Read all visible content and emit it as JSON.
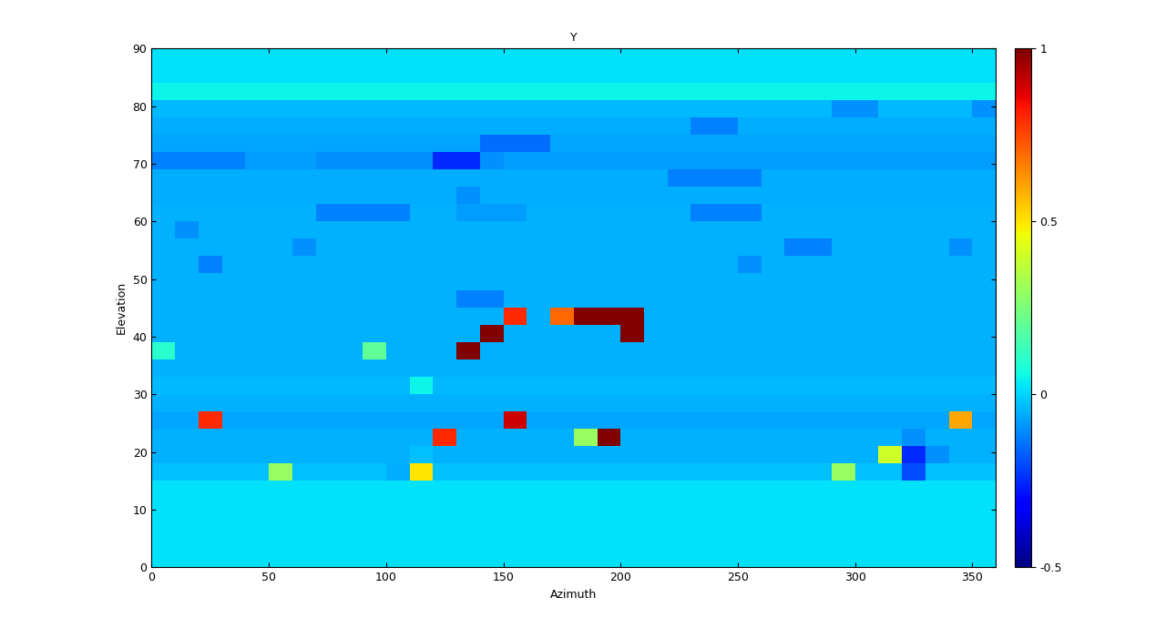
{
  "chart_data": {
    "type": "heatmap",
    "title": "Y",
    "x_label": "Azimuth",
    "y_label": "Elevation",
    "xlim": [
      0,
      360
    ],
    "xticks": [
      0,
      50,
      100,
      150,
      200,
      250,
      300,
      350
    ],
    "ylim": [
      0,
      90
    ],
    "yticks": [
      0,
      10,
      20,
      30,
      40,
      50,
      60,
      70,
      80,
      90
    ],
    "x": [
      0,
      10,
      20,
      30,
      40,
      50,
      60,
      70,
      80,
      90,
      100,
      110,
      120,
      130,
      140,
      150,
      160,
      170,
      180,
      190,
      200,
      210,
      220,
      230,
      240,
      250,
      260,
      270,
      280,
      290,
      300,
      310,
      320,
      330,
      340,
      350,
      360
    ],
    "y": [
      0,
      3,
      6,
      9,
      12,
      15,
      18,
      21,
      24,
      27,
      30,
      33,
      36,
      39,
      42,
      45,
      48,
      51,
      54,
      57,
      60,
      63,
      66,
      69,
      72,
      75,
      78,
      81,
      84,
      87,
      90
    ],
    "z": [
      [
        0.02,
        0.02,
        0.02,
        0.02,
        0.02,
        0.02,
        0.02,
        0.02,
        0.02,
        0.02,
        0.02,
        0.02,
        0.02,
        0.02,
        0.02,
        0.02,
        0.02,
        0.02,
        0.02,
        0.02,
        0.02,
        0.02,
        0.02,
        0.02,
        0.02,
        0.02,
        0.02,
        0.02,
        0.02,
        0.02,
        0.02,
        0.02,
        0.02,
        0.02,
        0.02,
        0.02
      ],
      [
        0.02,
        0.02,
        0.02,
        0.02,
        0.02,
        0.02,
        0.02,
        0.02,
        0.02,
        0.02,
        0.02,
        0.02,
        0.02,
        0.02,
        0.02,
        0.02,
        0.02,
        0.02,
        0.02,
        0.02,
        0.02,
        0.02,
        0.02,
        0.02,
        0.02,
        0.02,
        0.02,
        0.02,
        0.02,
        0.02,
        0.02,
        0.02,
        0.02,
        0.02,
        0.02,
        0.02
      ],
      [
        0.02,
        0.02,
        0.02,
        0.02,
        0.02,
        0.02,
        0.02,
        0.02,
        0.02,
        0.02,
        0.02,
        0.02,
        0.02,
        0.02,
        0.02,
        0.02,
        0.02,
        0.02,
        0.02,
        0.02,
        0.02,
        0.02,
        0.02,
        0.02,
        0.02,
        0.02,
        0.02,
        0.02,
        0.02,
        0.02,
        0.02,
        0.02,
        0.02,
        0.02,
        0.02,
        0.02
      ],
      [
        0.02,
        0.02,
        0.02,
        0.02,
        0.02,
        0.02,
        0.02,
        0.02,
        0.02,
        0.02,
        0.02,
        0.02,
        0.02,
        0.02,
        0.02,
        0.02,
        0.02,
        0.02,
        0.02,
        0.02,
        0.02,
        0.02,
        0.02,
        0.02,
        0.02,
        0.02,
        0.02,
        0.02,
        0.02,
        0.02,
        0.02,
        0.02,
        0.02,
        0.02,
        0.02,
        0.02
      ],
      [
        0.02,
        0.02,
        0.02,
        0.02,
        0.02,
        0.02,
        0.02,
        0.02,
        0.02,
        0.02,
        0.02,
        0.02,
        0.02,
        0.02,
        0.02,
        0.02,
        0.02,
        0.02,
        0.02,
        0.02,
        0.02,
        0.02,
        0.02,
        0.02,
        0.02,
        0.02,
        0.02,
        0.02,
        0.02,
        0.02,
        0.02,
        0.02,
        0.02,
        0.02,
        0.02,
        0.02
      ],
      [
        -0.03,
        -0.03,
        -0.03,
        -0.03,
        -0.03,
        0.3,
        -0.03,
        -0.03,
        -0.03,
        -0.03,
        -0.06,
        0.5,
        -0.03,
        -0.03,
        -0.03,
        -0.03,
        -0.03,
        -0.03,
        -0.03,
        -0.03,
        -0.03,
        -0.03,
        -0.03,
        -0.03,
        -0.03,
        -0.03,
        -0.03,
        -0.03,
        -0.03,
        0.3,
        -0.03,
        -0.03,
        -0.2,
        -0.03,
        -0.03,
        -0.03
      ],
      [
        -0.05,
        -0.05,
        -0.05,
        -0.05,
        -0.05,
        -0.05,
        -0.05,
        -0.05,
        -0.05,
        -0.05,
        -0.05,
        -0.03,
        -0.05,
        -0.05,
        -0.05,
        -0.05,
        -0.05,
        -0.05,
        -0.05,
        -0.05,
        -0.05,
        -0.05,
        -0.05,
        -0.05,
        -0.05,
        -0.05,
        -0.05,
        -0.05,
        -0.05,
        -0.05,
        -0.05,
        0.4,
        -0.25,
        -0.1,
        -0.05,
        -0.05
      ],
      [
        -0.05,
        -0.05,
        -0.05,
        -0.05,
        -0.05,
        -0.05,
        -0.05,
        -0.05,
        -0.05,
        -0.05,
        -0.05,
        -0.05,
        0.8,
        -0.05,
        -0.05,
        -0.05,
        -0.05,
        -0.05,
        0.3,
        1.0,
        -0.05,
        -0.05,
        -0.05,
        -0.05,
        -0.05,
        -0.05,
        -0.05,
        -0.05,
        -0.05,
        -0.05,
        -0.05,
        -0.05,
        -0.1,
        -0.05,
        -0.05,
        -0.05
      ],
      [
        -0.07,
        -0.07,
        0.8,
        -0.07,
        -0.07,
        -0.07,
        -0.07,
        -0.07,
        -0.07,
        -0.07,
        -0.07,
        -0.07,
        -0.07,
        -0.07,
        -0.07,
        0.9,
        -0.07,
        -0.07,
        -0.07,
        -0.07,
        -0.07,
        -0.07,
        -0.07,
        -0.07,
        -0.07,
        -0.07,
        -0.07,
        -0.07,
        -0.07,
        -0.07,
        -0.07,
        -0.07,
        -0.07,
        -0.07,
        0.6,
        -0.07
      ],
      [
        -0.05,
        -0.05,
        -0.05,
        -0.05,
        -0.05,
        -0.05,
        -0.05,
        -0.05,
        -0.05,
        -0.05,
        -0.05,
        -0.05,
        -0.05,
        -0.05,
        -0.05,
        -0.05,
        -0.05,
        -0.05,
        -0.05,
        -0.05,
        -0.05,
        -0.05,
        -0.05,
        -0.05,
        -0.05,
        -0.05,
        -0.05,
        -0.05,
        -0.05,
        -0.05,
        -0.05,
        -0.05,
        -0.05,
        -0.05,
        -0.05,
        -0.05
      ],
      [
        -0.04,
        -0.04,
        -0.04,
        -0.04,
        -0.04,
        -0.04,
        -0.04,
        -0.04,
        -0.04,
        -0.04,
        -0.04,
        0.05,
        -0.04,
        -0.04,
        -0.04,
        -0.04,
        -0.04,
        -0.04,
        -0.04,
        -0.04,
        -0.04,
        -0.04,
        -0.04,
        -0.04,
        -0.04,
        -0.04,
        -0.04,
        -0.04,
        -0.04,
        -0.04,
        -0.04,
        -0.04,
        -0.04,
        -0.04,
        -0.04,
        -0.04
      ],
      [
        -0.05,
        -0.05,
        -0.05,
        -0.05,
        -0.05,
        -0.05,
        -0.05,
        -0.05,
        -0.05,
        -0.05,
        -0.05,
        -0.05,
        -0.05,
        -0.05,
        -0.05,
        -0.05,
        -0.05,
        -0.05,
        -0.05,
        -0.05,
        -0.05,
        -0.05,
        -0.05,
        -0.05,
        -0.05,
        -0.05,
        -0.05,
        -0.05,
        -0.05,
        -0.05,
        -0.05,
        -0.05,
        -0.05,
        -0.05,
        -0.05,
        -0.05
      ],
      [
        0.1,
        -0.05,
        -0.05,
        -0.05,
        -0.05,
        -0.05,
        -0.05,
        -0.05,
        -0.05,
        0.2,
        -0.05,
        -0.05,
        -0.05,
        1.0,
        -0.05,
        -0.05,
        -0.05,
        -0.05,
        -0.05,
        -0.05,
        -0.05,
        -0.05,
        -0.05,
        -0.05,
        -0.05,
        -0.05,
        -0.05,
        -0.05,
        -0.05,
        -0.05,
        -0.05,
        -0.05,
        -0.05,
        -0.05,
        -0.05,
        -0.05
      ],
      [
        -0.05,
        -0.05,
        -0.05,
        -0.05,
        -0.05,
        -0.05,
        -0.05,
        -0.05,
        -0.05,
        -0.05,
        -0.05,
        -0.05,
        -0.05,
        -0.05,
        1.0,
        -0.05,
        -0.05,
        -0.05,
        -0.05,
        -0.05,
        1.0,
        -0.05,
        -0.05,
        -0.05,
        -0.05,
        -0.05,
        -0.05,
        -0.05,
        -0.05,
        -0.05,
        -0.05,
        -0.05,
        -0.05,
        -0.05,
        -0.05,
        -0.05
      ],
      [
        -0.05,
        -0.05,
        -0.05,
        -0.05,
        -0.05,
        -0.05,
        -0.05,
        -0.05,
        -0.05,
        -0.05,
        -0.05,
        -0.05,
        -0.05,
        -0.05,
        -0.05,
        0.8,
        -0.05,
        0.7,
        1.0,
        1.0,
        1.0,
        -0.05,
        -0.05,
        -0.05,
        -0.05,
        -0.05,
        -0.05,
        -0.05,
        -0.05,
        -0.05,
        -0.05,
        -0.05,
        -0.05,
        -0.05,
        -0.05,
        -0.05
      ],
      [
        -0.05,
        -0.05,
        -0.05,
        -0.05,
        -0.05,
        -0.05,
        -0.05,
        -0.05,
        -0.05,
        -0.05,
        -0.05,
        -0.05,
        -0.05,
        -0.12,
        -0.12,
        -0.05,
        -0.05,
        -0.05,
        -0.05,
        -0.05,
        -0.05,
        -0.05,
        -0.05,
        -0.05,
        -0.05,
        -0.05,
        -0.05,
        -0.05,
        -0.05,
        -0.05,
        -0.05,
        -0.05,
        -0.05,
        -0.05,
        -0.05,
        -0.05
      ],
      [
        -0.05,
        -0.05,
        -0.05,
        -0.05,
        -0.05,
        -0.05,
        -0.05,
        -0.05,
        -0.05,
        -0.05,
        -0.05,
        -0.05,
        -0.05,
        -0.05,
        -0.05,
        -0.05,
        -0.05,
        -0.05,
        -0.05,
        -0.05,
        -0.05,
        -0.05,
        -0.05,
        -0.05,
        -0.05,
        -0.05,
        -0.05,
        -0.05,
        -0.05,
        -0.05,
        -0.05,
        -0.05,
        -0.05,
        -0.05,
        -0.05,
        -0.05
      ],
      [
        -0.05,
        -0.05,
        -0.12,
        -0.05,
        -0.05,
        -0.05,
        -0.05,
        -0.05,
        -0.05,
        -0.05,
        -0.05,
        -0.05,
        -0.05,
        -0.05,
        -0.05,
        -0.05,
        -0.05,
        -0.05,
        -0.05,
        -0.05,
        -0.05,
        -0.05,
        -0.05,
        -0.05,
        -0.05,
        -0.1,
        -0.05,
        -0.05,
        -0.05,
        -0.05,
        -0.05,
        -0.05,
        -0.05,
        -0.05,
        -0.05,
        -0.05
      ],
      [
        -0.05,
        -0.05,
        -0.05,
        -0.05,
        -0.05,
        -0.05,
        -0.1,
        -0.05,
        -0.05,
        -0.05,
        -0.05,
        -0.05,
        -0.05,
        -0.05,
        -0.05,
        -0.05,
        -0.05,
        -0.05,
        -0.05,
        -0.05,
        -0.05,
        -0.05,
        -0.05,
        -0.05,
        -0.05,
        -0.05,
        -0.05,
        -0.12,
        -0.12,
        -0.05,
        -0.05,
        -0.05,
        -0.05,
        -0.05,
        -0.1,
        -0.05
      ],
      [
        -0.05,
        -0.1,
        -0.05,
        -0.05,
        -0.05,
        -0.05,
        -0.05,
        -0.05,
        -0.05,
        -0.05,
        -0.05,
        -0.05,
        -0.05,
        -0.05,
        -0.05,
        -0.05,
        -0.05,
        -0.05,
        -0.05,
        -0.05,
        -0.05,
        -0.05,
        -0.05,
        -0.05,
        -0.05,
        -0.05,
        -0.05,
        -0.05,
        -0.05,
        -0.05,
        -0.05,
        -0.05,
        -0.05,
        -0.05,
        -0.05,
        -0.05
      ],
      [
        -0.05,
        -0.05,
        -0.05,
        -0.05,
        -0.05,
        -0.05,
        -0.05,
        -0.12,
        -0.12,
        -0.12,
        -0.12,
        -0.05,
        -0.05,
        -0.08,
        -0.08,
        -0.08,
        -0.05,
        -0.05,
        -0.05,
        -0.05,
        -0.05,
        -0.05,
        -0.05,
        -0.12,
        -0.12,
        -0.12,
        -0.05,
        -0.05,
        -0.05,
        -0.05,
        -0.05,
        -0.05,
        -0.05,
        -0.05,
        -0.05,
        -0.05
      ],
      [
        -0.06,
        -0.06,
        -0.06,
        -0.06,
        -0.06,
        -0.06,
        -0.06,
        -0.06,
        -0.06,
        -0.06,
        -0.06,
        -0.06,
        -0.06,
        -0.1,
        -0.06,
        -0.06,
        -0.06,
        -0.06,
        -0.06,
        -0.06,
        -0.06,
        -0.06,
        -0.06,
        -0.06,
        -0.06,
        -0.06,
        -0.06,
        -0.06,
        -0.06,
        -0.06,
        -0.06,
        -0.06,
        -0.06,
        -0.06,
        -0.06,
        -0.06
      ],
      [
        -0.06,
        -0.06,
        -0.06,
        -0.06,
        -0.06,
        -0.06,
        -0.06,
        -0.06,
        -0.06,
        -0.06,
        -0.06,
        -0.06,
        -0.06,
        -0.06,
        -0.06,
        -0.06,
        -0.06,
        -0.06,
        -0.06,
        -0.06,
        -0.06,
        -0.06,
        -0.12,
        -0.12,
        -0.12,
        -0.12,
        -0.06,
        -0.06,
        -0.06,
        -0.06,
        -0.06,
        -0.06,
        -0.06,
        -0.06,
        -0.06,
        -0.06
      ],
      [
        -0.12,
        -0.12,
        -0.12,
        -0.12,
        -0.08,
        -0.08,
        -0.08,
        -0.1,
        -0.1,
        -0.1,
        -0.1,
        -0.1,
        -0.25,
        -0.25,
        -0.1,
        -0.08,
        -0.08,
        -0.08,
        -0.08,
        -0.08,
        -0.08,
        -0.08,
        -0.08,
        -0.08,
        -0.08,
        -0.08,
        -0.08,
        -0.08,
        -0.08,
        -0.08,
        -0.08,
        -0.08,
        -0.08,
        -0.08,
        -0.08,
        -0.08
      ],
      [
        -0.07,
        -0.07,
        -0.07,
        -0.07,
        -0.07,
        -0.07,
        -0.07,
        -0.07,
        -0.07,
        -0.07,
        -0.07,
        -0.07,
        -0.07,
        -0.07,
        -0.15,
        -0.15,
        -0.15,
        -0.07,
        -0.07,
        -0.07,
        -0.07,
        -0.07,
        -0.07,
        -0.07,
        -0.07,
        -0.07,
        -0.07,
        -0.07,
        -0.07,
        -0.07,
        -0.07,
        -0.07,
        -0.07,
        -0.07,
        -0.07,
        -0.07
      ],
      [
        -0.06,
        -0.06,
        -0.06,
        -0.06,
        -0.06,
        -0.06,
        -0.06,
        -0.06,
        -0.06,
        -0.06,
        -0.06,
        -0.06,
        -0.06,
        -0.06,
        -0.06,
        -0.06,
        -0.06,
        -0.06,
        -0.06,
        -0.06,
        -0.06,
        -0.06,
        -0.06,
        -0.12,
        -0.12,
        -0.06,
        -0.06,
        -0.06,
        -0.06,
        -0.06,
        -0.06,
        -0.06,
        -0.06,
        -0.06,
        -0.06,
        -0.06
      ],
      [
        -0.04,
        -0.04,
        -0.04,
        -0.04,
        -0.04,
        -0.04,
        -0.04,
        -0.04,
        -0.04,
        -0.04,
        -0.04,
        -0.04,
        -0.04,
        -0.04,
        -0.04,
        -0.04,
        -0.04,
        -0.04,
        -0.04,
        -0.04,
        -0.04,
        -0.04,
        -0.04,
        -0.04,
        -0.04,
        -0.04,
        -0.04,
        -0.04,
        -0.04,
        -0.1,
        -0.1,
        -0.04,
        -0.04,
        -0.04,
        -0.04,
        -0.1
      ],
      [
        0.05,
        0.05,
        0.05,
        0.05,
        0.05,
        0.05,
        0.05,
        0.05,
        0.05,
        0.05,
        0.05,
        0.05,
        0.05,
        0.05,
        0.05,
        0.05,
        0.05,
        0.05,
        0.05,
        0.05,
        0.05,
        0.05,
        0.05,
        0.05,
        0.05,
        0.05,
        0.05,
        0.05,
        0.05,
        0.05,
        0.05,
        0.05,
        0.05,
        0.05,
        0.05,
        0.05
      ],
      [
        0.02,
        0.02,
        0.02,
        0.02,
        0.02,
        0.02,
        0.02,
        0.02,
        0.02,
        0.02,
        0.02,
        0.02,
        0.02,
        0.02,
        0.02,
        0.02,
        0.02,
        0.02,
        0.02,
        0.02,
        0.02,
        0.02,
        0.02,
        0.02,
        0.02,
        0.02,
        0.02,
        0.02,
        0.02,
        0.02,
        0.02,
        0.02,
        0.02,
        0.02,
        0.02,
        0.02
      ],
      [
        0.02,
        0.02,
        0.02,
        0.02,
        0.02,
        0.02,
        0.02,
        0.02,
        0.02,
        0.02,
        0.02,
        0.02,
        0.02,
        0.02,
        0.02,
        0.02,
        0.02,
        0.02,
        0.02,
        0.02,
        0.02,
        0.02,
        0.02,
        0.02,
        0.02,
        0.02,
        0.02,
        0.02,
        0.02,
        0.02,
        0.02,
        0.02,
        0.02,
        0.02,
        0.02,
        0.02
      ]
    ],
    "colorbar": {
      "lim": [
        -0.5,
        1
      ],
      "ticks": [
        -0.5,
        0,
        0.5,
        1
      ]
    }
  }
}
